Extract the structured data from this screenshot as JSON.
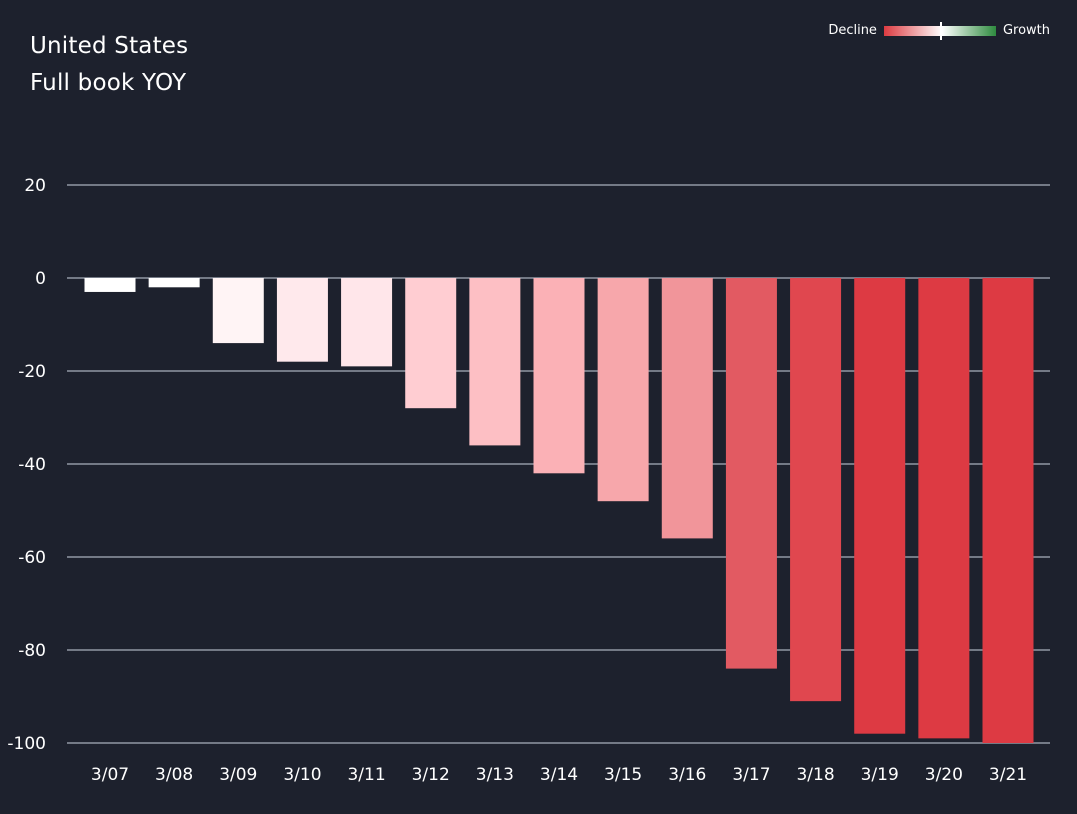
{
  "header": {
    "title_line1": "United States",
    "title_line2": "Full book YOY"
  },
  "legend": {
    "left_label": "Decline",
    "right_label": "Growth",
    "left_color": "#dd3b41",
    "mid_color": "#ffffff",
    "right_color": "#2e8b3f"
  },
  "chart_data": {
    "type": "bar",
    "categories": [
      "3/07",
      "3/08",
      "3/09",
      "3/10",
      "3/11",
      "3/12",
      "3/13",
      "3/14",
      "3/15",
      "3/16",
      "3/17",
      "3/18",
      "3/19",
      "3/20",
      "3/21"
    ],
    "values": [
      -3,
      -2,
      -14,
      -18,
      -19,
      -28,
      -36,
      -42,
      -48,
      -56,
      -84,
      -91,
      -98,
      -99,
      -100
    ],
    "colors": [
      "#ffffff",
      "#ffffff",
      "#fff4f5",
      "#ffe9ec",
      "#ffe6ea",
      "#ffcdd2",
      "#fdbfc4",
      "#fbb1b6",
      "#f7a7ab",
      "#f1959a",
      "#e25a62",
      "#e0474f",
      "#dd3a43",
      "#dd3a43",
      "#dd3a43"
    ],
    "yticks": [
      20,
      0,
      -20,
      -40,
      -60,
      -80,
      -100
    ],
    "ylim": [
      -100,
      20
    ],
    "grid": true,
    "legend_position": "top-right"
  }
}
